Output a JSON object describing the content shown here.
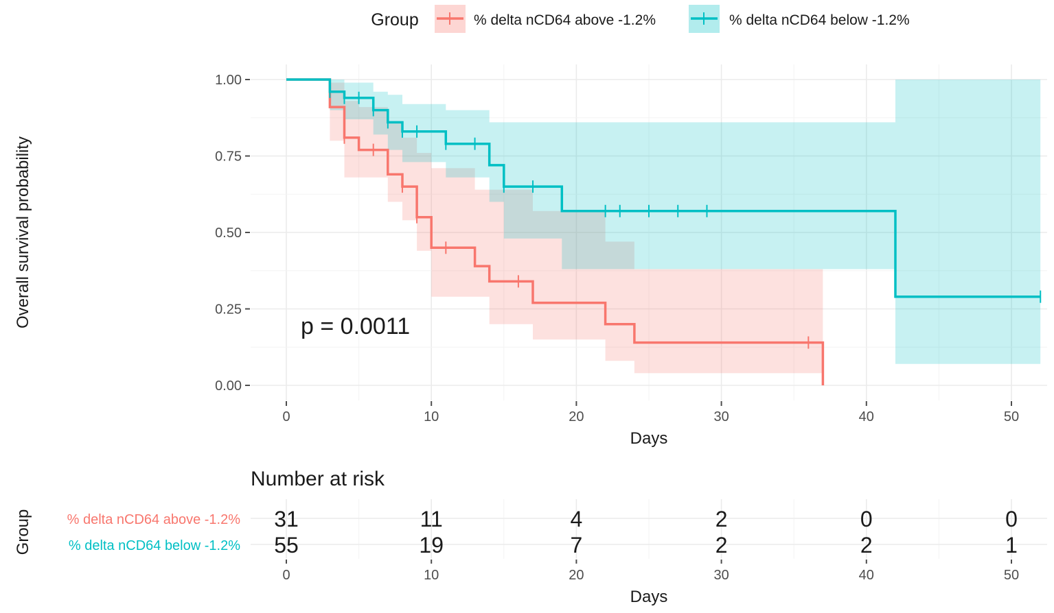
{
  "colors": {
    "above": "#F8766D",
    "below": "#00BFC4",
    "grid": "#EBEBEB",
    "text": "#1A1A1A",
    "tick": "#4D4D4D"
  },
  "legend": {
    "title": "Group",
    "entries": [
      "% delta nCD64 above -1.2%",
      "% delta nCD64 below -1.2%"
    ],
    "position": "top"
  },
  "chart_data": {
    "type": "line",
    "subtype": "kaplan-meier step",
    "xlabel": "Days",
    "ylabel": "Overall survival probability",
    "xlim": [
      0,
      52
    ],
    "ylim": [
      0,
      1
    ],
    "x_ticks": [
      0,
      10,
      20,
      30,
      40,
      50
    ],
    "y_ticks": [
      0,
      0.25,
      0.5,
      0.75,
      1.0
    ],
    "y_tick_labels": [
      "0.00",
      "0.25",
      "0.50",
      "0.75",
      "1.00"
    ],
    "annotation": "p = 0.0011",
    "series": [
      {
        "name": "% delta nCD64 above -1.2%",
        "color_key": "above",
        "steps": [
          [
            0,
            1.0
          ],
          [
            3,
            0.91
          ],
          [
            4,
            0.81
          ],
          [
            5,
            0.77
          ],
          [
            7,
            0.69
          ],
          [
            8,
            0.65
          ],
          [
            9,
            0.55
          ],
          [
            10,
            0.45
          ],
          [
            13,
            0.39
          ],
          [
            14,
            0.34
          ],
          [
            17,
            0.27
          ],
          [
            22,
            0.2
          ],
          [
            24,
            0.14
          ],
          [
            37,
            0.0
          ]
        ],
        "end_x": 37,
        "ci": [
          [
            0,
            1.0,
            1.0
          ],
          [
            3,
            0.99,
            0.8
          ],
          [
            4,
            0.93,
            0.68
          ],
          [
            5,
            0.91,
            0.68
          ],
          [
            7,
            0.86,
            0.6
          ],
          [
            8,
            0.81,
            0.54
          ],
          [
            9,
            0.76,
            0.44
          ],
          [
            10,
            0.71,
            0.29
          ],
          [
            13,
            0.64,
            0.29
          ],
          [
            14,
            0.64,
            0.2
          ],
          [
            17,
            0.57,
            0.15
          ],
          [
            22,
            0.47,
            0.08
          ],
          [
            24,
            0.38,
            0.04
          ],
          [
            37,
            0.38,
            0.04
          ]
        ],
        "censor_x": [
          4,
          6,
          8,
          9,
          11,
          16,
          36
        ]
      },
      {
        "name": "% delta nCD64 below -1.2%",
        "color_key": "below",
        "steps": [
          [
            0,
            1.0
          ],
          [
            3,
            0.96
          ],
          [
            4,
            0.94
          ],
          [
            6,
            0.9
          ],
          [
            7,
            0.86
          ],
          [
            8,
            0.83
          ],
          [
            11,
            0.79
          ],
          [
            14,
            0.72
          ],
          [
            15,
            0.65
          ],
          [
            19,
            0.57
          ],
          [
            42,
            0.29
          ]
        ],
        "end_x": 52,
        "ci": [
          [
            0,
            1.0,
            1.0
          ],
          [
            3,
            1.0,
            0.9
          ],
          [
            4,
            0.99,
            0.87
          ],
          [
            6,
            0.96,
            0.82
          ],
          [
            7,
            0.95,
            0.77
          ],
          [
            8,
            0.92,
            0.73
          ],
          [
            11,
            0.9,
            0.68
          ],
          [
            14,
            0.86,
            0.6
          ],
          [
            15,
            0.86,
            0.48
          ],
          [
            19,
            0.86,
            0.38
          ],
          [
            42,
            1.0,
            0.07
          ],
          [
            52,
            1.0,
            0.07
          ]
        ],
        "censor_x": [
          3,
          4,
          5,
          6,
          7,
          8,
          9,
          11,
          13,
          15,
          17,
          22,
          23,
          25,
          27,
          29,
          52
        ]
      }
    ]
  },
  "risk_table": {
    "title": "Number at risk",
    "ylabel": "Group",
    "xlabel": "Days",
    "x": [
      0,
      10,
      20,
      30,
      40,
      50
    ],
    "x_tick_labels": [
      "0",
      "10",
      "20",
      "30",
      "40",
      "50"
    ],
    "rows": [
      {
        "label": "% delta nCD64 above -1.2%",
        "color_key": "above",
        "values": [
          "31",
          "11",
          "4",
          "2",
          "0",
          "0"
        ]
      },
      {
        "label": "% delta nCD64 below -1.2%",
        "color_key": "below",
        "values": [
          "55",
          "19",
          "7",
          "2",
          "2",
          "1"
        ]
      }
    ]
  }
}
